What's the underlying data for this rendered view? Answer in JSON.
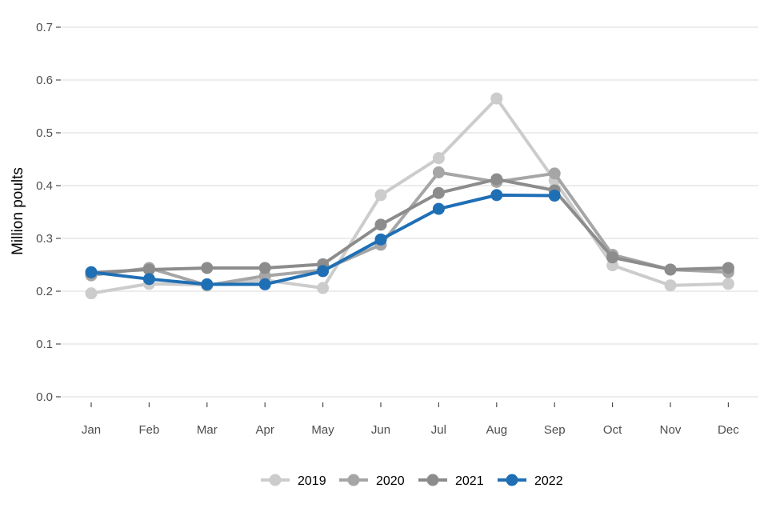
{
  "chart_data": {
    "type": "line",
    "categories": [
      "Jan",
      "Feb",
      "Mar",
      "Apr",
      "May",
      "Jun",
      "Jul",
      "Aug",
      "Sep",
      "Oct",
      "Nov",
      "Dec"
    ],
    "ylabel": "Million poults",
    "ylim": [
      0,
      0.7
    ],
    "yticks": [
      "0.0",
      "0.1",
      "0.2",
      "0.3",
      "0.4",
      "0.5",
      "0.6",
      "0.7"
    ],
    "grid": true,
    "legend_position": "bottom",
    "series": [
      {
        "name": "2019",
        "color": "#cccccc",
        "values": [
          0.196,
          0.214,
          0.212,
          0.221,
          0.206,
          0.382,
          0.452,
          0.565,
          0.41,
          0.249,
          0.211,
          0.214
        ]
      },
      {
        "name": "2020",
        "color": "#a6a6a6",
        "values": [
          0.23,
          0.244,
          0.211,
          0.229,
          0.24,
          0.288,
          0.425,
          0.407,
          0.423,
          0.269,
          0.241,
          0.236
        ]
      },
      {
        "name": "2021",
        "color": "#8c8c8c",
        "values": [
          0.235,
          0.241,
          0.244,
          0.244,
          0.251,
          0.326,
          0.386,
          0.412,
          0.391,
          0.264,
          0.241,
          0.244
        ]
      },
      {
        "name": "2022",
        "color": "#1f6fb5",
        "values": [
          0.236,
          0.223,
          0.213,
          0.213,
          0.238,
          0.298,
          0.356,
          0.382,
          0.381,
          null,
          null,
          null
        ]
      }
    ]
  }
}
